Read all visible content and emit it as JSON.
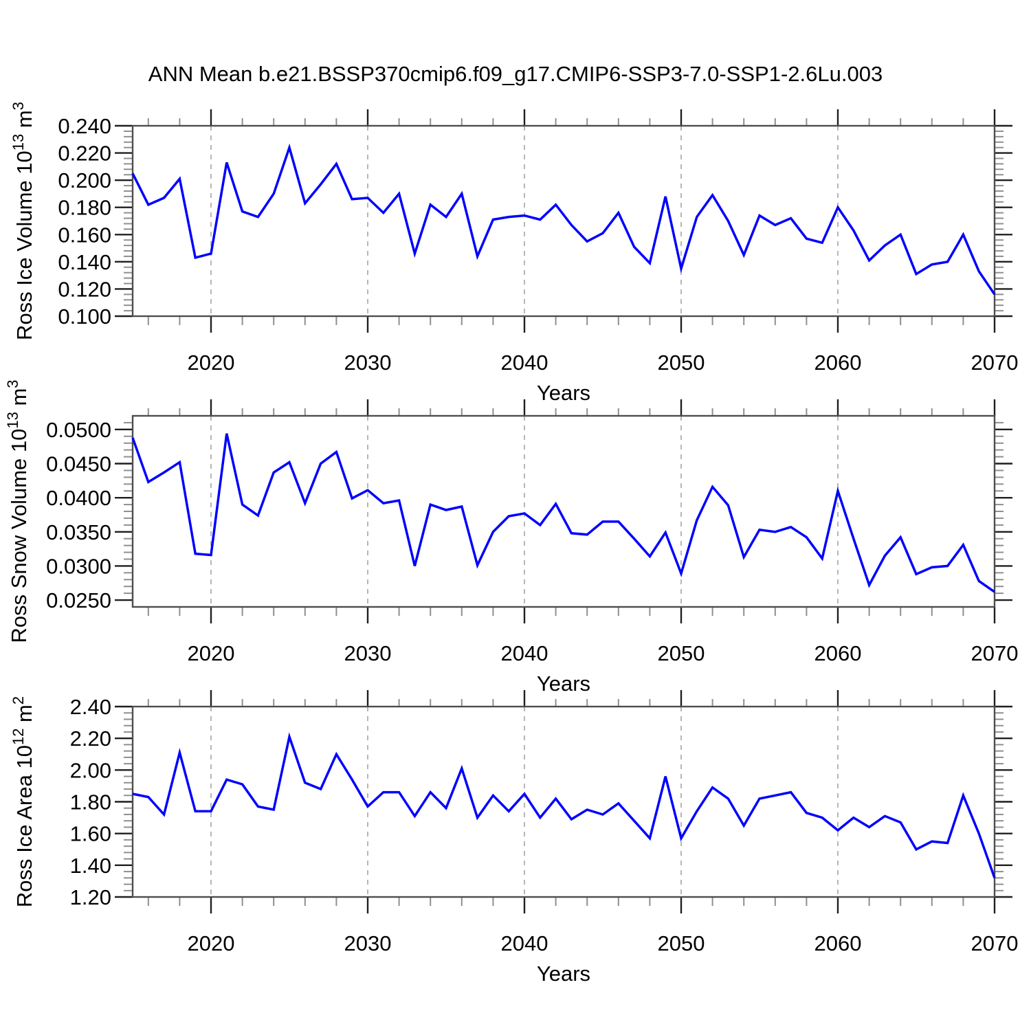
{
  "title": "ANN Mean b.e21.BSSP370cmip6.f09_g17.CMIP6-SSP3-7.0-SSP1-2.6Lu.003",
  "colors": {
    "line": "#0000ff",
    "frame": "#4d4d4d",
    "major_tick": "#1f1f1f",
    "minor_tick": "#8f8f8f",
    "gridline": "#a9a9a9",
    "text": "#000000",
    "background": "#ffffff"
  },
  "chart_data": [
    {
      "type": "line",
      "name": "ross-ice-volume",
      "ylabel": "Ross Ice Volume 10^13 m^3",
      "ylabel_parts": [
        {
          "text": "Ross Ice Volume 10"
        },
        {
          "text": "13",
          "sup": true
        },
        {
          "text": " m"
        },
        {
          "text": "3",
          "sup": true
        }
      ],
      "xlabel": "Years",
      "x": [
        2015,
        2016,
        2017,
        2018,
        2019,
        2020,
        2021,
        2022,
        2023,
        2024,
        2025,
        2026,
        2027,
        2028,
        2029,
        2030,
        2031,
        2032,
        2033,
        2034,
        2035,
        2036,
        2037,
        2038,
        2039,
        2040,
        2041,
        2042,
        2043,
        2044,
        2045,
        2046,
        2047,
        2048,
        2049,
        2050,
        2051,
        2052,
        2053,
        2054,
        2055,
        2056,
        2057,
        2058,
        2059,
        2060,
        2061,
        2062,
        2063,
        2064,
        2065,
        2066,
        2067,
        2068,
        2069,
        2070
      ],
      "y": [
        0.205,
        0.182,
        0.187,
        0.201,
        0.143,
        0.146,
        0.213,
        0.177,
        0.173,
        0.19,
        0.224,
        0.183,
        0.197,
        0.212,
        0.186,
        0.187,
        0.176,
        0.19,
        0.146,
        0.182,
        0.173,
        0.19,
        0.144,
        0.171,
        0.173,
        0.174,
        0.171,
        0.182,
        0.167,
        0.155,
        0.161,
        0.176,
        0.151,
        0.139,
        0.188,
        0.135,
        0.173,
        0.189,
        0.17,
        0.145,
        0.174,
        0.167,
        0.172,
        0.157,
        0.154,
        0.18,
        0.163,
        0.141,
        0.152,
        0.16,
        0.131,
        0.138,
        0.14,
        0.16,
        0.133,
        0.116
      ],
      "xlim": [
        2015,
        2070
      ],
      "ylim": [
        0.1,
        0.24
      ],
      "yticks_major": [
        0.24,
        0.22,
        0.2,
        0.18,
        0.16,
        0.14,
        0.12,
        0.1
      ],
      "ytick_labels": [
        "0.240",
        "0.220",
        "0.200",
        "0.180",
        "0.160",
        "0.140",
        "0.120",
        "0.100"
      ],
      "y_minor_step": 0.004,
      "xticks_major": [
        2020,
        2030,
        2040,
        2050,
        2060,
        2070
      ],
      "xtick_labels": [
        "2020",
        "2030",
        "2040",
        "2050",
        "2060",
        "2070"
      ],
      "x_minor_step": 2,
      "grid_x": [
        2020,
        2030,
        2040,
        2050,
        2060
      ],
      "grid_on": true,
      "legend": "none"
    },
    {
      "type": "line",
      "name": "ross-snow-volume",
      "ylabel": "Ross Snow Volume 10^13 m^3",
      "ylabel_parts": [
        {
          "text": "Ross Snow Volume 10"
        },
        {
          "text": "13",
          "sup": true
        },
        {
          "text": " m"
        },
        {
          "text": "3",
          "sup": true
        }
      ],
      "xlabel": "Years",
      "x": [
        2015,
        2016,
        2017,
        2018,
        2019,
        2020,
        2021,
        2022,
        2023,
        2024,
        2025,
        2026,
        2027,
        2028,
        2029,
        2030,
        2031,
        2032,
        2033,
        2034,
        2035,
        2036,
        2037,
        2038,
        2039,
        2040,
        2041,
        2042,
        2043,
        2044,
        2045,
        2046,
        2047,
        2048,
        2049,
        2050,
        2051,
        2052,
        2053,
        2054,
        2055,
        2056,
        2057,
        2058,
        2059,
        2060,
        2061,
        2062,
        2063,
        2064,
        2065,
        2066,
        2067,
        2068,
        2069,
        2070
      ],
      "y": [
        0.0488,
        0.0423,
        0.0437,
        0.0452,
        0.0318,
        0.0316,
        0.0494,
        0.039,
        0.0374,
        0.0437,
        0.0452,
        0.0392,
        0.045,
        0.0467,
        0.0399,
        0.0411,
        0.0392,
        0.0396,
        0.03,
        0.039,
        0.0382,
        0.0387,
        0.0301,
        0.035,
        0.0373,
        0.0377,
        0.036,
        0.0391,
        0.0348,
        0.0346,
        0.0365,
        0.0365,
        0.034,
        0.0314,
        0.0349,
        0.0289,
        0.0367,
        0.0416,
        0.0389,
        0.0313,
        0.0353,
        0.035,
        0.0357,
        0.0342,
        0.0311,
        0.041,
        0.034,
        0.0272,
        0.0315,
        0.0342,
        0.0288,
        0.0298,
        0.03,
        0.0331,
        0.0278,
        0.0262
      ],
      "xlim": [
        2015,
        2070
      ],
      "ylim": [
        0.024,
        0.052
      ],
      "yticks_major": [
        0.05,
        0.045,
        0.04,
        0.035,
        0.03,
        0.025
      ],
      "ytick_labels": [
        "0.0500",
        "0.0450",
        "0.0400",
        "0.0350",
        "0.0300",
        "0.0250"
      ],
      "y_minor_step": 0.001,
      "xticks_major": [
        2020,
        2030,
        2040,
        2050,
        2060,
        2070
      ],
      "xtick_labels": [
        "2020",
        "2030",
        "2040",
        "2050",
        "2060",
        "2070"
      ],
      "x_minor_step": 2,
      "grid_x": [
        2020,
        2030,
        2040,
        2050,
        2060
      ],
      "grid_on": true,
      "legend": "none"
    },
    {
      "type": "line",
      "name": "ross-ice-area",
      "ylabel": "Ross Ice Area 10^12 m^2",
      "ylabel_parts": [
        {
          "text": "Ross Ice Area 10"
        },
        {
          "text": "12",
          "sup": true
        },
        {
          "text": " m"
        },
        {
          "text": "2",
          "sup": true
        }
      ],
      "xlabel": "Years",
      "x": [
        2015,
        2016,
        2017,
        2018,
        2019,
        2020,
        2021,
        2022,
        2023,
        2024,
        2025,
        2026,
        2027,
        2028,
        2029,
        2030,
        2031,
        2032,
        2033,
        2034,
        2035,
        2036,
        2037,
        2038,
        2039,
        2040,
        2041,
        2042,
        2043,
        2044,
        2045,
        2046,
        2047,
        2048,
        2049,
        2050,
        2051,
        2052,
        2053,
        2054,
        2055,
        2056,
        2057,
        2058,
        2059,
        2060,
        2061,
        2062,
        2063,
        2064,
        2065,
        2066,
        2067,
        2068,
        2069,
        2070
      ],
      "y": [
        1.85,
        1.83,
        1.72,
        2.11,
        1.74,
        1.74,
        1.94,
        1.91,
        1.77,
        1.75,
        2.21,
        1.92,
        1.88,
        2.1,
        1.94,
        1.77,
        1.86,
        1.86,
        1.71,
        1.86,
        1.76,
        2.01,
        1.7,
        1.84,
        1.74,
        1.85,
        1.7,
        1.82,
        1.69,
        1.75,
        1.72,
        1.79,
        1.68,
        1.57,
        1.96,
        1.57,
        1.74,
        1.89,
        1.82,
        1.65,
        1.82,
        1.84,
        1.86,
        1.73,
        1.7,
        1.62,
        1.7,
        1.64,
        1.71,
        1.67,
        1.5,
        1.55,
        1.54,
        1.84,
        1.6,
        1.32
      ],
      "xlim": [
        2015,
        2070
      ],
      "ylim": [
        1.2,
        2.4
      ],
      "yticks_major": [
        2.4,
        2.2,
        2.0,
        1.8,
        1.6,
        1.4,
        1.2
      ],
      "ytick_labels": [
        "2.40",
        "2.20",
        "2.00",
        "1.80",
        "1.60",
        "1.40",
        "1.20"
      ],
      "y_minor_step": 0.04,
      "xticks_major": [
        2020,
        2030,
        2040,
        2050,
        2060,
        2070
      ],
      "xtick_labels": [
        "2020",
        "2030",
        "2040",
        "2050",
        "2060",
        "2070"
      ],
      "x_minor_step": 2,
      "grid_x": [
        2020,
        2030,
        2040,
        2050,
        2060
      ],
      "grid_on": true,
      "legend": "none"
    }
  ]
}
